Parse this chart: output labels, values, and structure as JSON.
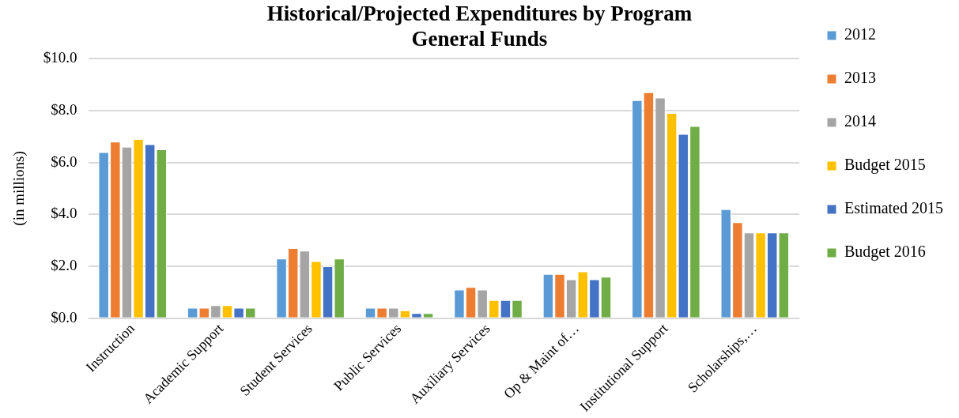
{
  "chart_data": {
    "type": "bar",
    "title": "Historical/Projected Expenditures by Program\nGeneral Funds",
    "ylabel": "(in millions)",
    "categories": [
      "Instruction",
      "Academic Support",
      "Student Services",
      "Public Services",
      "Auxiliary Services",
      "Op & Maint of…",
      "Institutional Support",
      "Scholarships,…"
    ],
    "series": [
      {
        "name": "2012",
        "color": "#5b9bd5",
        "values": [
          6.4,
          0.4,
          2.3,
          0.4,
          1.1,
          1.7,
          8.4,
          4.2
        ]
      },
      {
        "name": "2013",
        "color": "#ed7d31",
        "values": [
          6.8,
          0.4,
          2.7,
          0.4,
          1.2,
          1.7,
          8.7,
          3.7
        ]
      },
      {
        "name": "2014",
        "color": "#a5a5a5",
        "values": [
          6.6,
          0.5,
          2.6,
          0.4,
          1.1,
          1.5,
          8.5,
          3.3
        ]
      },
      {
        "name": "Budget 2015",
        "color": "#ffc000",
        "values": [
          6.9,
          0.5,
          2.2,
          0.3,
          0.7,
          1.8,
          7.9,
          3.3
        ]
      },
      {
        "name": "Estimated 2015",
        "color": "#4472c4",
        "values": [
          6.7,
          0.4,
          2.0,
          0.2,
          0.7,
          1.5,
          7.1,
          3.3
        ]
      },
      {
        "name": "Budget 2016",
        "color": "#70ad47",
        "values": [
          6.5,
          0.4,
          2.3,
          0.2,
          0.7,
          1.6,
          7.4,
          3.3
        ]
      }
    ],
    "ylim": [
      0,
      10
    ],
    "yticks": [
      {
        "value": 0,
        "label": "$0.0"
      },
      {
        "value": 2,
        "label": "$2.0"
      },
      {
        "value": 4,
        "label": "$4.0"
      },
      {
        "value": 6,
        "label": "$6.0"
      },
      {
        "value": 8,
        "label": "$8.0"
      },
      {
        "value": 10,
        "label": "$10.0"
      }
    ],
    "grid": "y",
    "legend": "right"
  }
}
